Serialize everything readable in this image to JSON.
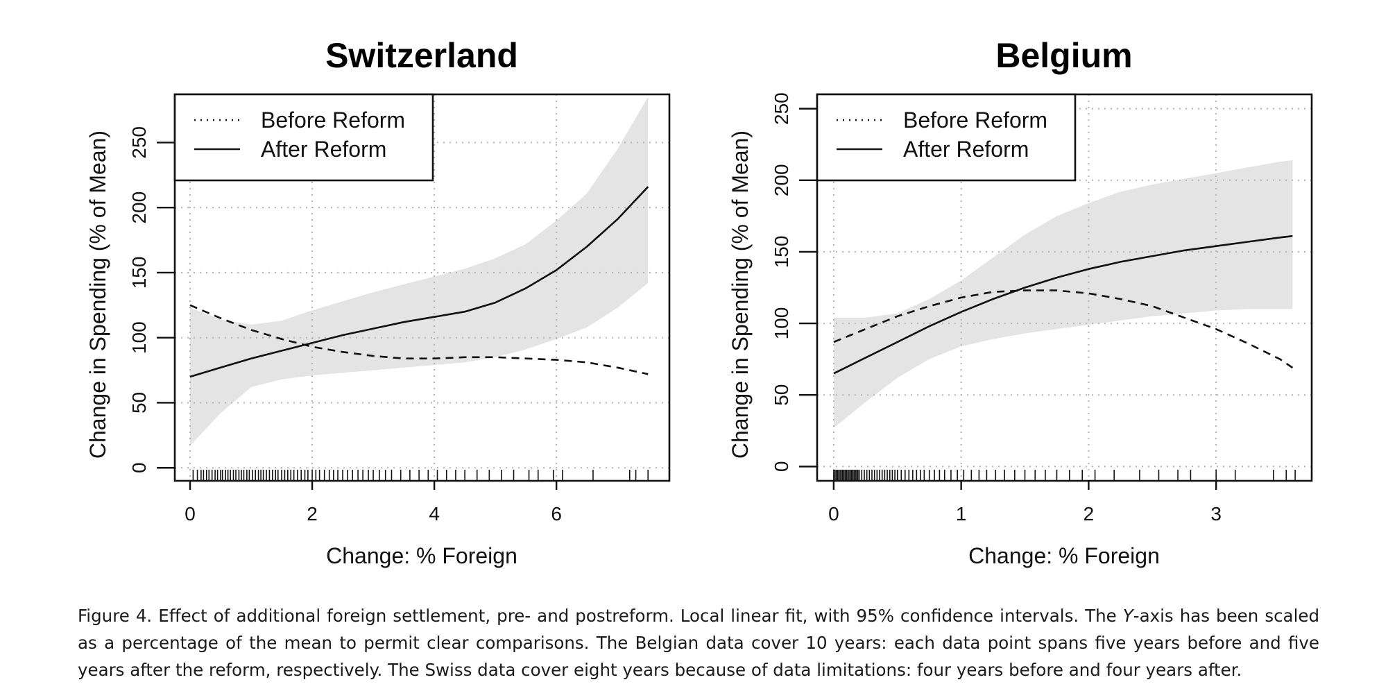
{
  "chart_data": [
    {
      "type": "line",
      "title": "Switzerland",
      "xlabel": "Change: % Foreign",
      "ylabel": "Change in Spending (% of Mean)",
      "xlim": [
        -0.25,
        7.85
      ],
      "ylim": [
        -10,
        287
      ],
      "xticks": [
        0,
        2,
        4,
        6
      ],
      "yticks": [
        0,
        50,
        100,
        150,
        200,
        250
      ],
      "grid": true,
      "legend_position": "top-left",
      "series": [
        {
          "name": "Before Reform",
          "line_style": "dashed",
          "x": [
            0,
            0.5,
            1,
            1.5,
            2,
            2.5,
            3,
            3.5,
            4,
            4.5,
            5,
            5.5,
            6,
            6.5,
            7,
            7.5
          ],
          "y": [
            125,
            115,
            106,
            99,
            93,
            89,
            86,
            84,
            84,
            85,
            85,
            84,
            83,
            81,
            77,
            72
          ]
        },
        {
          "name": "After Reform",
          "line_style": "solid",
          "x": [
            0,
            0.5,
            1,
            1.5,
            2,
            2.5,
            3,
            3.5,
            4,
            4.5,
            5,
            5.5,
            6,
            6.5,
            7,
            7.5
          ],
          "y": [
            70,
            77,
            84,
            90,
            96,
            102,
            107,
            112,
            116,
            120,
            127,
            138,
            152,
            170,
            191,
            216
          ]
        }
      ],
      "confidence_band": {
        "x": [
          0,
          0.5,
          1,
          1.5,
          2,
          2.5,
          3,
          3.5,
          4,
          4.5,
          5,
          5.5,
          6,
          6.5,
          7,
          7.5
        ],
        "lower": [
          17,
          42,
          62,
          68,
          71,
          73,
          75,
          77,
          79,
          81,
          85,
          91,
          99,
          108,
          123,
          142
        ],
        "upper": [
          123,
          114,
          110,
          113,
          121,
          128,
          135,
          141,
          147,
          153,
          161,
          172,
          190,
          211,
          245,
          285
        ]
      },
      "rug": [
        0.05,
        0.12,
        0.18,
        0.22,
        0.27,
        0.31,
        0.36,
        0.41,
        0.45,
        0.5,
        0.53,
        0.58,
        0.62,
        0.66,
        0.71,
        0.75,
        0.8,
        0.84,
        0.88,
        0.93,
        0.97,
        1.02,
        1.07,
        1.12,
        1.16,
        1.2,
        1.25,
        1.3,
        1.35,
        1.4,
        1.44,
        1.5,
        1.55,
        1.6,
        1.65,
        1.7,
        1.76,
        1.82,
        1.88,
        1.93,
        2.0,
        2.06,
        2.12,
        2.2,
        2.28,
        2.35,
        2.42,
        2.5,
        2.58,
        2.66,
        2.75,
        2.83,
        2.92,
        3.0,
        3.1,
        3.2,
        3.3,
        3.45,
        3.6,
        3.75,
        3.9,
        4.05,
        4.2,
        4.35,
        4.5,
        4.7,
        4.9,
        5.1,
        5.3,
        5.55,
        5.7,
        5.95,
        6.1,
        6.6,
        7.2,
        7.3,
        7.5
      ]
    },
    {
      "type": "line",
      "title": "Belgium",
      "xlabel": "Change: % Foreign",
      "ylabel": "Change in Spending (% of Mean)",
      "xlim": [
        -0.13,
        3.75
      ],
      "ylim": [
        -10,
        260
      ],
      "xticks": [
        0,
        1,
        2,
        3
      ],
      "yticks": [
        0,
        50,
        100,
        150,
        200,
        250
      ],
      "grid": true,
      "legend_position": "top-left",
      "series": [
        {
          "name": "Before Reform",
          "line_style": "dashed",
          "x": [
            0,
            0.25,
            0.5,
            0.75,
            1,
            1.25,
            1.5,
            1.75,
            2,
            2.25,
            2.5,
            2.75,
            3,
            3.25,
            3.5,
            3.6
          ],
          "y": [
            87,
            96,
            105,
            112,
            118,
            122,
            123,
            123,
            121,
            117,
            112,
            104,
            96,
            86,
            75,
            69
          ]
        },
        {
          "name": "After Reform",
          "line_style": "solid",
          "x": [
            0,
            0.25,
            0.5,
            0.75,
            1,
            1.25,
            1.5,
            1.75,
            2,
            2.25,
            2.5,
            2.75,
            3,
            3.25,
            3.5,
            3.6
          ],
          "y": [
            65,
            76,
            87,
            98,
            108,
            117,
            125,
            132,
            138,
            143,
            147,
            151,
            154,
            157,
            160,
            161
          ]
        }
      ],
      "confidence_band": {
        "x": [
          0,
          0.25,
          0.5,
          0.75,
          1,
          1.25,
          1.5,
          1.75,
          2,
          2.25,
          2.5,
          2.75,
          3,
          3.25,
          3.5,
          3.6
        ],
        "lower": [
          27,
          45,
          62,
          75,
          84,
          89,
          93,
          96,
          99,
          102,
          105,
          107,
          109,
          110,
          110,
          110
        ],
        "upper": [
          104,
          104,
          107,
          117,
          130,
          146,
          162,
          175,
          184,
          192,
          197,
          201,
          205,
          209,
          213,
          214
        ]
      },
      "rug": [
        0.0,
        0.01,
        0.02,
        0.03,
        0.04,
        0.05,
        0.06,
        0.07,
        0.08,
        0.09,
        0.1,
        0.11,
        0.12,
        0.13,
        0.14,
        0.15,
        0.16,
        0.17,
        0.18,
        0.19,
        0.2,
        0.22,
        0.24,
        0.26,
        0.28,
        0.3,
        0.32,
        0.34,
        0.36,
        0.38,
        0.4,
        0.42,
        0.44,
        0.46,
        0.48,
        0.5,
        0.53,
        0.56,
        0.59,
        0.62,
        0.65,
        0.68,
        0.71,
        0.75,
        0.79,
        0.83,
        0.87,
        0.92,
        0.97,
        1.02,
        1.08,
        1.14,
        1.2,
        1.27,
        1.34,
        1.42,
        1.5,
        1.58,
        1.66,
        1.75,
        1.85,
        1.95,
        2.05,
        2.2,
        2.4,
        2.55,
        2.7,
        2.8,
        3.0,
        3.15,
        3.45,
        3.55,
        3.62
      ]
    }
  ],
  "caption": {
    "part1": "Figure 4. Effect of additional foreign settlement, pre- and postreform. Local linear fit, with 95% confidence intervals. The ",
    "axis_letter": "Y",
    "part2": "-axis has been scaled as a percentage of the mean to permit clear comparisons. The Belgian data cover 10 years: each data point spans five years before and five years after the reform, respectively. The Swiss data cover eight years because of data limitations: four years before and four years after."
  }
}
